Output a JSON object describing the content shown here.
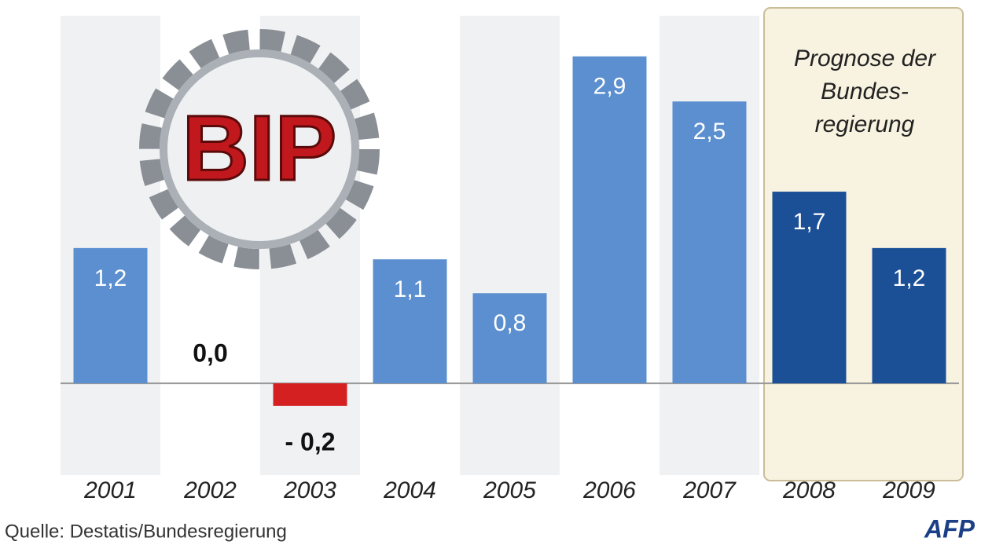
{
  "chart_data": {
    "type": "bar",
    "categories": [
      "2001",
      "2002",
      "2003",
      "2004",
      "2005",
      "2006",
      "2007",
      "2008",
      "2009"
    ],
    "values": [
      1.2,
      0.0,
      -0.2,
      1.1,
      0.8,
      2.9,
      2.5,
      1.7,
      1.2
    ],
    "value_labels": [
      "1,2",
      "0,0",
      "- 0,2",
      "1,1",
      "0,8",
      "2,9",
      "2,5",
      "1,7",
      "1,2"
    ],
    "colors": [
      "#5b8fcf",
      "#5b8fcf",
      "#d42020",
      "#5b8fcf",
      "#5b8fcf",
      "#5b8fcf",
      "#5b8fcf",
      "#1b4f96",
      "#1b4f96"
    ],
    "ylim": [
      -0.8,
      3.4
    ],
    "annotation": [
      "Prognose der",
      "Bundes-",
      "regierung"
    ],
    "badge": "BIP",
    "source": "Quelle: Destatis/Bundesregierung",
    "logo": "AFP"
  }
}
